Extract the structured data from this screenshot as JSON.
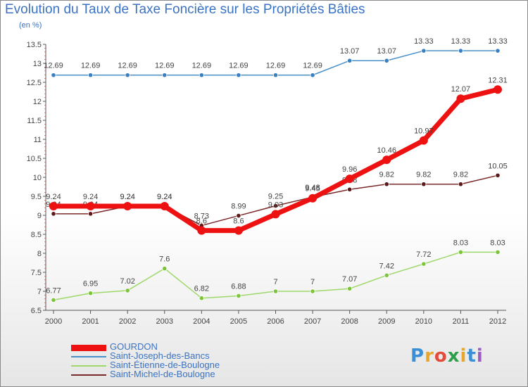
{
  "header": {
    "title": "Evolution du Taux de Taxe Foncière sur les Propriétés Bâties",
    "unit": "(en %)"
  },
  "logo": {
    "text": "Proxiti",
    "colors": [
      "#3a8fd6",
      "#e8a72c",
      "#e34a3c",
      "#2f9e4a",
      "#e8a72c",
      "#3a8fd6",
      "#9c5cc4"
    ]
  },
  "chart_data": {
    "type": "line",
    "title": "Evolution du Taux de Taxe Foncière sur les Propriétés Bâties",
    "ylabel": "(en %)",
    "xlabel": "",
    "x": [
      "2000",
      "2001",
      "2002",
      "2003",
      "2004",
      "2005",
      "2006",
      "2007",
      "2008",
      "2009",
      "2010",
      "2011",
      "2012"
    ],
    "yticks": [
      "6.5",
      "7",
      "7.5",
      "8",
      "8.5",
      "9",
      "9.5",
      "10",
      "10.5",
      "11",
      "11.5",
      "12",
      "12.5",
      "13",
      "13.5"
    ],
    "ylim": [
      6.5,
      13.5
    ],
    "grid": false,
    "legend_position": "bottom",
    "series": [
      {
        "name": "Saint-Joseph-des-Bancs",
        "color": "#4a90c8",
        "point_color": "#3a7fc0",
        "values": [
          12.69,
          12.69,
          12.69,
          12.69,
          12.69,
          12.69,
          12.69,
          12.69,
          13.07,
          13.07,
          13.33,
          13.33,
          13.33
        ],
        "labels": [
          "12.69",
          "12.69",
          "12.69",
          "12.69",
          "12.69",
          "12.69",
          "12.69",
          "12.69",
          "13.07",
          "13.07",
          "13.33",
          "13.33",
          "13.33"
        ]
      },
      {
        "name": "Saint-Étienne-de-Boulogne",
        "color": "#9fd86a",
        "point_color": "#7cc43a",
        "values": [
          6.77,
          6.95,
          7.02,
          7.6,
          6.82,
          6.88,
          7.0,
          7.0,
          7.07,
          7.42,
          7.72,
          8.03,
          8.03
        ],
        "labels": [
          "6.77",
          "6.95",
          "7.02",
          "7.6",
          "6.82",
          "6.88",
          "7",
          "7",
          "7.07",
          "7.42",
          "7.72",
          "8.03",
          "8.03"
        ]
      },
      {
        "name": "Saint-Michel-de-Boulogne",
        "color": "#7a2a2a",
        "point_color": "#5c1a1a",
        "values": [
          9.04,
          9.04,
          9.24,
          9.24,
          8.73,
          8.99,
          9.25,
          9.48,
          9.68,
          9.82,
          9.82,
          9.82,
          10.05
        ],
        "labels": [
          "9.04",
          "9.04",
          "9.24",
          "9.24",
          "8.73",
          "8.99",
          "9.25",
          "9.48",
          "9.68",
          "9.82",
          "9.82",
          "9.82",
          "10.05"
        ]
      },
      {
        "name": "GOURDON",
        "color": "#ee1111",
        "point_color": "#ee1111",
        "values": [
          9.24,
          9.24,
          9.24,
          9.24,
          8.6,
          8.6,
          9.03,
          9.45,
          9.96,
          10.46,
          10.97,
          12.07,
          12.31
        ],
        "labels": [
          "9.24",
          "9.24",
          "9.24",
          "9.24",
          "8.6",
          "8.6",
          "9.03",
          "9.45",
          "9.96",
          "10.46",
          "10.97",
          "12.07",
          "12.31"
        ]
      }
    ],
    "legend_order": [
      "GOURDON",
      "Saint-Joseph-des-Bancs",
      "Saint-Étienne-de-Boulogne",
      "Saint-Michel-de-Boulogne"
    ]
  }
}
